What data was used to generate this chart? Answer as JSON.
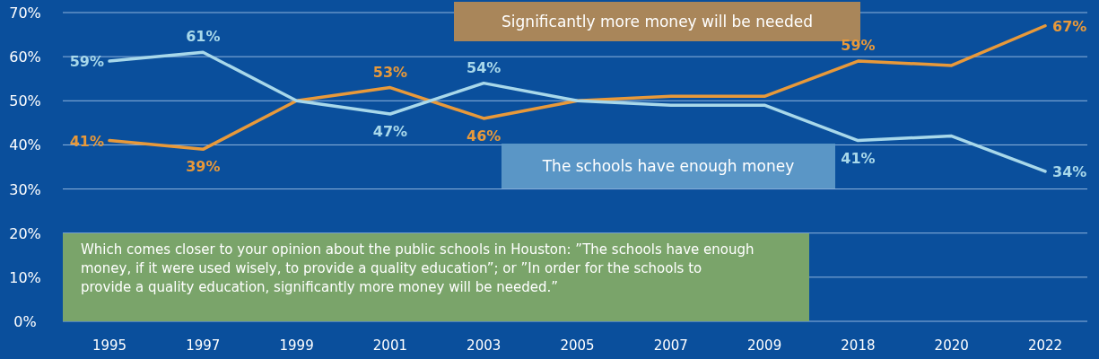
{
  "chart_data": {
    "type": "line",
    "categories": [
      "1995",
      "1997",
      "1999",
      "2001",
      "2003",
      "2005",
      "2007",
      "2009",
      "2018",
      "2020",
      "2022"
    ],
    "series": [
      {
        "name": "Significantly more money will be needed",
        "color": "#e8993a",
        "values": [
          41,
          39,
          50,
          53,
          46,
          50,
          51,
          51,
          59,
          58,
          67
        ],
        "value_labels": [
          "41%",
          "39%",
          null,
          "53%",
          "46%",
          null,
          null,
          null,
          "59%",
          null,
          "67%"
        ]
      },
      {
        "name": "The schools have enough money",
        "color": "#a8d8ea",
        "values": [
          59,
          61,
          50,
          47,
          54,
          50,
          49,
          49,
          41,
          42,
          34
        ],
        "value_labels": [
          "59%",
          "61%",
          null,
          "47%",
          "54%",
          null,
          null,
          null,
          "41%",
          null,
          "34%"
        ]
      }
    ],
    "ylim": [
      0,
      70
    ],
    "yticks": [
      {
        "value": 0,
        "label": "0%"
      },
      {
        "value": 10,
        "label": "10%"
      },
      {
        "value": 20,
        "label": "20%"
      },
      {
        "value": 30,
        "label": "30%"
      },
      {
        "value": 40,
        "label": "40%"
      },
      {
        "value": 50,
        "label": "50%"
      },
      {
        "value": 60,
        "label": "60%"
      },
      {
        "value": 70,
        "label": "70%"
      }
    ],
    "grid": "y",
    "marker": "none",
    "line_style": "solid",
    "annotations": [
      "Which comes closer to your opinion about the public schools in Houston: ”The schools have enough money, if it were used wisely, to provide a quality education”; or ”In order for the schools to provide a quality education, significantly more money will be needed.”"
    ]
  }
}
